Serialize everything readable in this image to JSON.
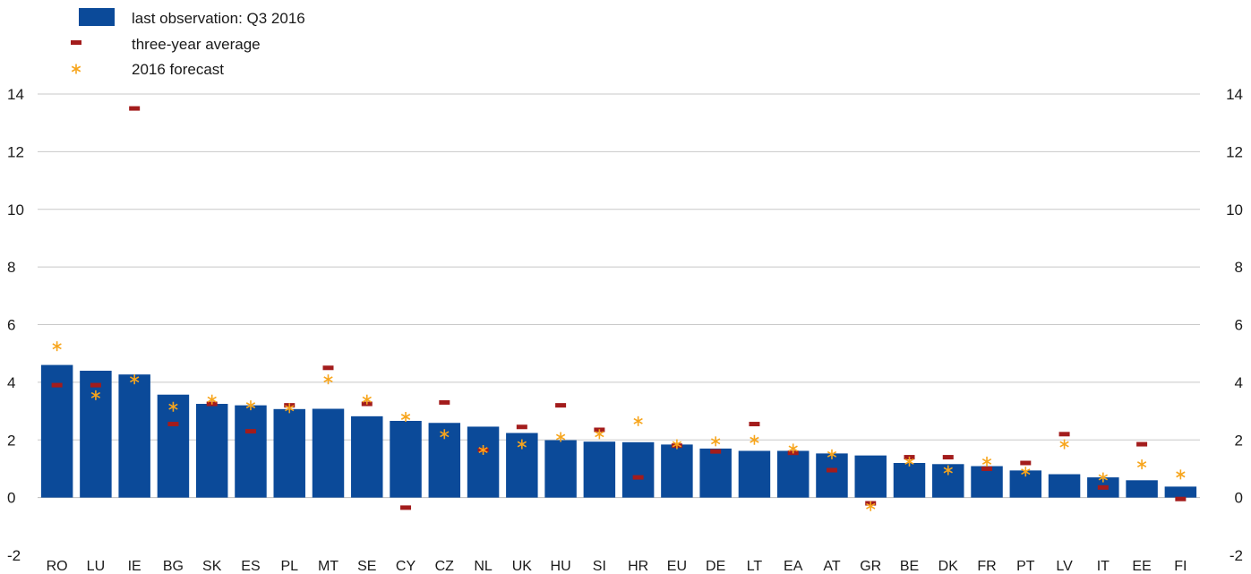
{
  "chart_data": {
    "type": "bar",
    "categories": [
      "RO",
      "LU",
      "IE",
      "BG",
      "SK",
      "ES",
      "PL",
      "MT",
      "SE",
      "CY",
      "CZ",
      "NL",
      "UK",
      "HU",
      "SI",
      "HR",
      "EU",
      "DE",
      "LT",
      "EA",
      "AT",
      "GR",
      "BE",
      "DK",
      "FR",
      "PT",
      "LV",
      "IT",
      "EE",
      "FI"
    ],
    "series": [
      {
        "name": "last observation: Q3 2016",
        "marker": "bar",
        "color": "#0b4a99",
        "values": [
          4.6,
          4.4,
          4.27,
          3.57,
          3.25,
          3.2,
          3.07,
          3.08,
          2.82,
          2.66,
          2.59,
          2.46,
          2.24,
          1.99,
          1.94,
          1.92,
          1.84,
          1.7,
          1.62,
          1.62,
          1.53,
          1.46,
          1.2,
          1.16,
          1.09,
          0.94,
          0.81,
          0.7,
          0.6,
          0.38
        ]
      },
      {
        "name": "three-year average",
        "marker": "dash",
        "color": "#a31c1c",
        "values": [
          3.9,
          3.9,
          13.5,
          2.55,
          3.25,
          2.3,
          3.2,
          4.5,
          3.25,
          -0.35,
          3.3,
          1.65,
          2.45,
          3.2,
          2.35,
          0.7,
          1.8,
          1.6,
          2.55,
          1.55,
          0.95,
          -0.2,
          1.4,
          1.4,
          1.0,
          1.2,
          2.2,
          0.35,
          1.85,
          -0.05
        ]
      },
      {
        "name": "2016 forecast",
        "marker": "star",
        "color": "#f7a51c",
        "values": [
          5.25,
          3.55,
          4.1,
          3.15,
          3.4,
          3.2,
          3.1,
          4.1,
          3.4,
          2.8,
          2.2,
          1.65,
          1.85,
          2.1,
          2.2,
          2.65,
          1.85,
          1.95,
          2.0,
          1.7,
          1.5,
          -0.3,
          1.25,
          0.95,
          1.25,
          0.9,
          1.85,
          0.7,
          1.15,
          0.8
        ]
      }
    ],
    "ylim": [
      -2,
      14
    ],
    "yticks": [
      -2,
      0,
      2,
      4,
      6,
      8,
      10,
      12,
      14
    ],
    "grid": true,
    "legend_position": "top-left"
  }
}
